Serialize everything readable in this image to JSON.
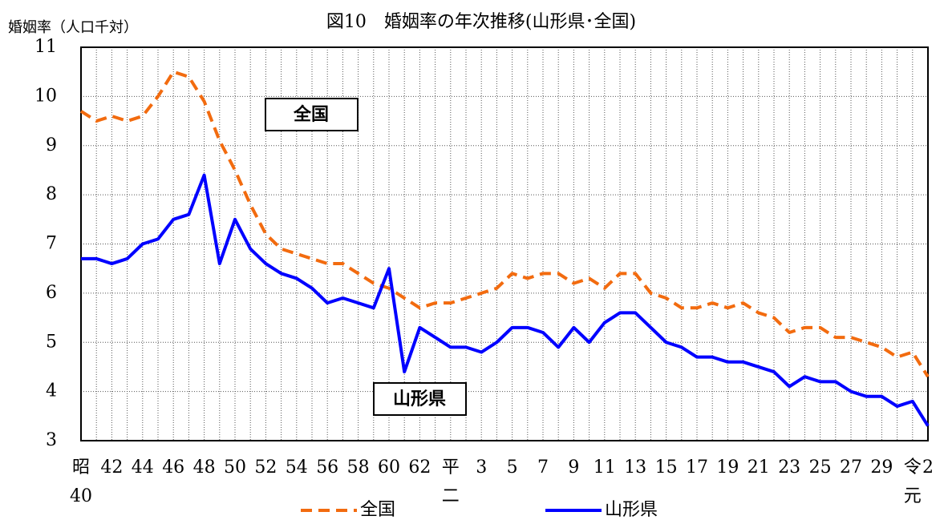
{
  "chart_data": {
    "type": "line",
    "title": "図10　婚姻率の年次推移(山形県･全国)",
    "y_label": "婚姻率（人口千対）",
    "categories": [
      "昭\n40",
      null,
      "42",
      null,
      "44",
      null,
      "46",
      null,
      "48",
      null,
      "50",
      null,
      "52",
      null,
      "54",
      null,
      "56",
      null,
      "58",
      null,
      "60",
      null,
      "62",
      null,
      "平\n二",
      null,
      "3",
      null,
      "5",
      null,
      "7",
      null,
      "9",
      null,
      "11",
      null,
      "13",
      null,
      "15",
      null,
      "17",
      null,
      "19",
      null,
      "21",
      null,
      "23",
      null,
      "25",
      null,
      "27",
      null,
      "29",
      null,
      "令\n元",
      "2"
    ],
    "series": [
      {
        "name": "全国",
        "color": "#f26b0f",
        "dashed": true,
        "values": [
          9.7,
          9.5,
          9.6,
          9.5,
          9.6,
          10.0,
          10.5,
          10.4,
          9.9,
          9.1,
          8.5,
          7.8,
          7.2,
          6.9,
          6.8,
          6.7,
          6.6,
          6.6,
          6.4,
          6.2,
          6.1,
          5.9,
          5.7,
          5.8,
          5.8,
          5.9,
          6.0,
          6.1,
          6.4,
          6.3,
          6.4,
          6.4,
          6.2,
          6.3,
          6.1,
          6.4,
          6.4,
          6.0,
          5.9,
          5.7,
          5.7,
          5.8,
          5.7,
          5.8,
          5.6,
          5.5,
          5.2,
          5.3,
          5.3,
          5.1,
          5.1,
          5.0,
          4.9,
          4.7,
          4.8,
          4.3
        ]
      },
      {
        "name": "山形県",
        "color": "#0000ff",
        "dashed": false,
        "values": [
          6.7,
          6.7,
          6.6,
          6.7,
          7.0,
          7.1,
          7.5,
          7.6,
          8.4,
          6.6,
          7.5,
          6.9,
          6.6,
          6.4,
          6.3,
          6.1,
          5.8,
          5.9,
          5.8,
          5.7,
          6.5,
          4.4,
          5.3,
          5.1,
          4.9,
          4.9,
          4.8,
          5.0,
          5.3,
          5.3,
          5.2,
          4.9,
          5.3,
          5.0,
          5.4,
          5.6,
          5.6,
          5.3,
          5.0,
          4.9,
          4.7,
          4.7,
          4.6,
          4.6,
          4.5,
          4.4,
          4.1,
          4.3,
          4.2,
          4.2,
          4.0,
          3.9,
          3.9,
          3.7,
          3.8,
          3.3
        ]
      }
    ],
    "annotations": [
      "全国",
      "山形県"
    ],
    "ylim": [
      3,
      11
    ],
    "yticks": [
      3,
      4,
      5,
      6,
      7,
      8,
      9,
      10,
      11
    ],
    "grid": true
  }
}
